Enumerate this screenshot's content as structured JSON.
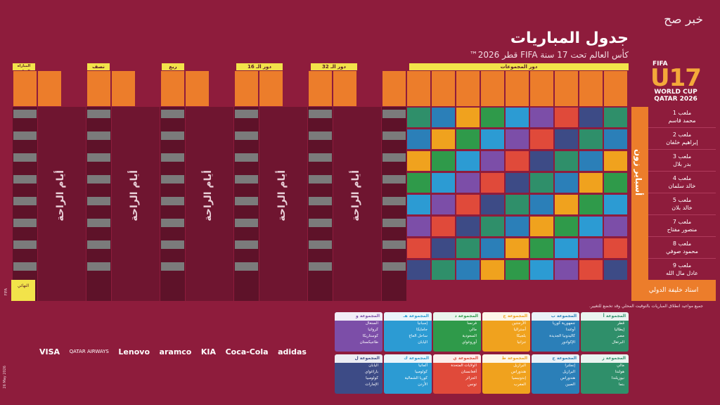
{
  "watermark": "خبر صح",
  "header": {
    "title": "جدول المباريات",
    "subtitle": "كأس العالم تحت 17 سنة FIFA قطر 2026™"
  },
  "logo": {
    "fifa": "FIFA",
    "u17": "U17",
    "line1": "WORLD CUP",
    "line2": "QATAR 2026"
  },
  "stages": {
    "group_stage": "دور المجموعات",
    "round32": "دور الـ 32",
    "round16": "دور الـ 16",
    "quarter": "ربع النهائي",
    "semi": "نصف النهائي",
    "final": "المباراة النهائية والمركز الثالث"
  },
  "rest_label": "أيام الراحة",
  "venue_title": "أسباير زون",
  "venues": [
    {
      "name": "ملعب 1",
      "sub": "محمد قاسم"
    },
    {
      "name": "ملعب 2",
      "sub": "إبراهيم خلفان"
    },
    {
      "name": "ملعب 3",
      "sub": "بدر بلال"
    },
    {
      "name": "ملعب 4",
      "sub": "خالد سلمان"
    },
    {
      "name": "ملعب 5",
      "sub": "خالد بلان"
    },
    {
      "name": "ملعب 7",
      "sub": "منصور مفتاح"
    },
    {
      "name": "ملعب 8",
      "sub": "محمود صوفي"
    },
    {
      "name": "ملعب 9",
      "sub": "عادل مال الله"
    }
  ],
  "khalifa": "استاد خليفة الدولي",
  "final_label": "النهائي",
  "note": "جميع مواعيد انطلاق المباريات بالتوقيت المحلي وقد تخضع للتغيير.",
  "groups": [
    {
      "name": "المجموعة أ",
      "color": "#2f8f6a",
      "teams": [
        "قطر",
        "إيطاليا",
        "مصر",
        "البرتغال"
      ]
    },
    {
      "name": "المجموعة ب",
      "color": "#2b7fb8",
      "teams": [
        "جمهورية كوريا",
        "أوغندا",
        "كاليدونيا الجديدة",
        "الإكوادور"
      ]
    },
    {
      "name": "المجموعة ج",
      "color": "#f0a21e",
      "teams": [
        "الأرجنتين",
        "أستراليا",
        "بلجيكا",
        "تنزانيا"
      ]
    },
    {
      "name": "المجموعة د",
      "color": "#2f9a4a",
      "teams": [
        "فرنسا",
        "مالي",
        "السعودية",
        "أوروغواي"
      ]
    },
    {
      "name": "المجموعة هـ",
      "color": "#2c9bd3",
      "teams": [
        "إسبانيا",
        "جامايكا",
        "ساحل العاج",
        "اليابان"
      ]
    },
    {
      "name": "المجموعة و",
      "color": "#7c4ea8",
      "teams": [
        "السنغال",
        "كرواتيا",
        "كوستاريكا",
        "طاجيكستان"
      ]
    },
    {
      "name": "المجموعة ز",
      "color": "#2f8f6a",
      "teams": [
        "مالي",
        "هولندا",
        "نيوزيلندا",
        "بنما"
      ]
    },
    {
      "name": "المجموعة ح",
      "color": "#2b7fb8",
      "teams": [
        "إنجلترا",
        "البرازيل",
        "هندوراس",
        "الصين"
      ]
    },
    {
      "name": "المجموعة ط",
      "color": "#f0a21e",
      "teams": [
        "البرازيل",
        "هندوراس",
        "إندونيسيا",
        "المغرب"
      ]
    },
    {
      "name": "المجموعة ي",
      "color": "#e04a3a",
      "teams": [
        "الولايات المتحدة",
        "أفغانستان",
        "الجزائر",
        "تونس"
      ]
    },
    {
      "name": "المجموعة ك",
      "color": "#2c9bd3",
      "teams": [
        "ألمانيا",
        "كولومبيا",
        "كوريا الشمالية",
        "الأردن"
      ]
    },
    {
      "name": "المجموعة ل",
      "color": "#3d4b86",
      "teams": [
        "اليابان",
        "باراغواي",
        "كولومبيا",
        "الإمارات"
      ]
    }
  ],
  "sponsors": [
    "VISA",
    "QATAR AIRWAYS",
    "Lenovo",
    "aramco",
    "KIA",
    "Coca-Cola",
    "adidas"
  ],
  "sponsor_small": "FIFA",
  "date_line": "26 May 2026"
}
